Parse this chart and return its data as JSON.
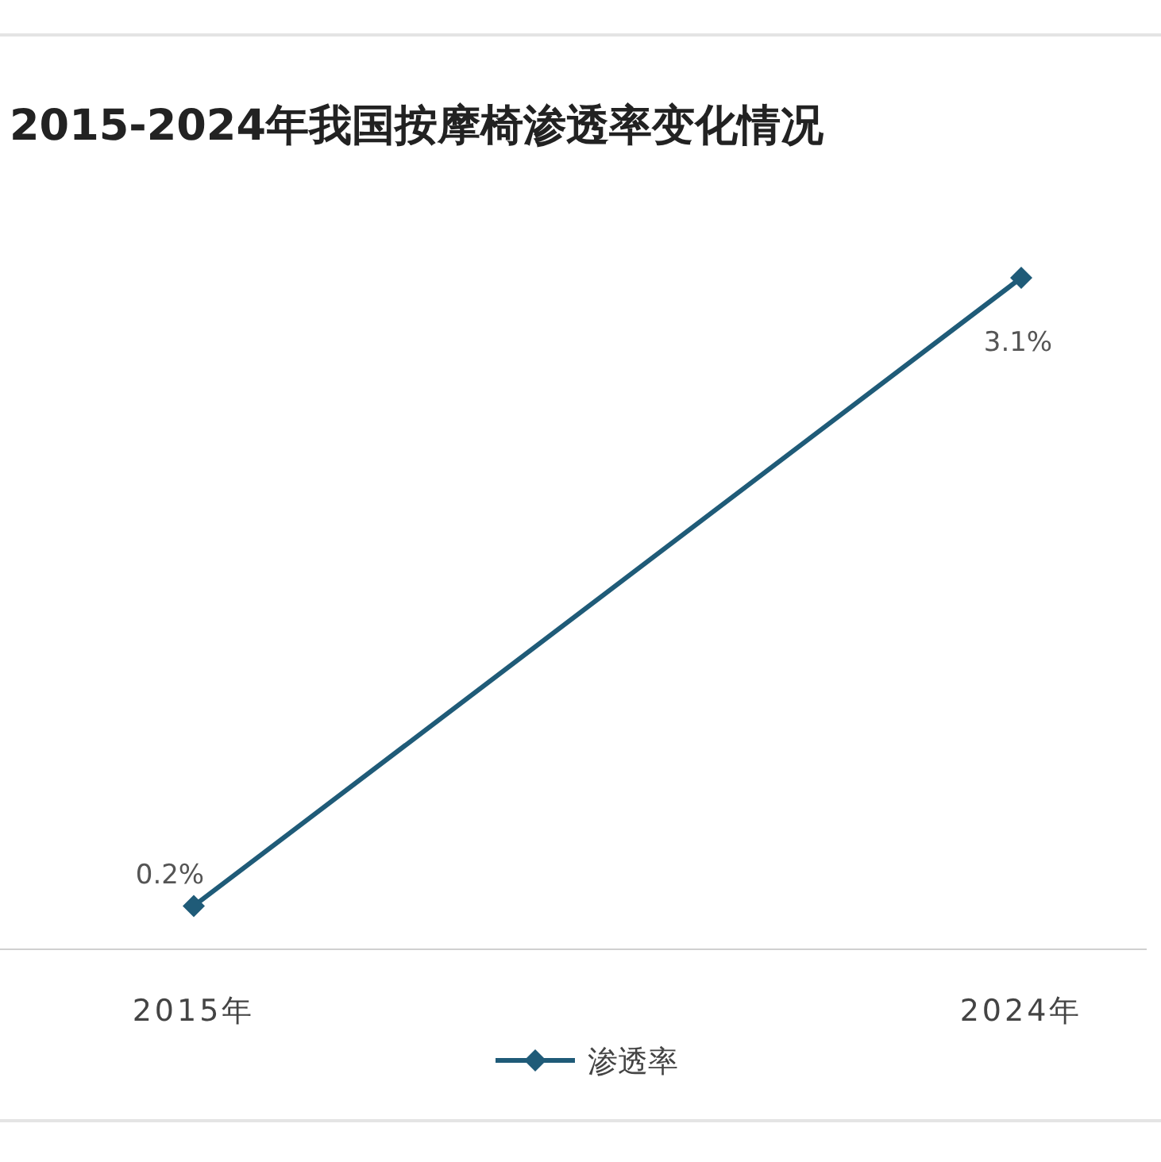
{
  "chart_data": {
    "type": "line",
    "title": "2015-2024年我国按摩椅渗透率变化情况",
    "categories": [
      "2015年",
      "2024年"
    ],
    "series": [
      {
        "name": "渗透率",
        "color": "#1f5b78",
        "values": [
          0.2,
          3.1
        ],
        "value_labels": [
          "0.2%",
          "3.1%"
        ]
      }
    ],
    "marker": "diamond",
    "legend": "bottom",
    "tick_labels": "x"
  }
}
